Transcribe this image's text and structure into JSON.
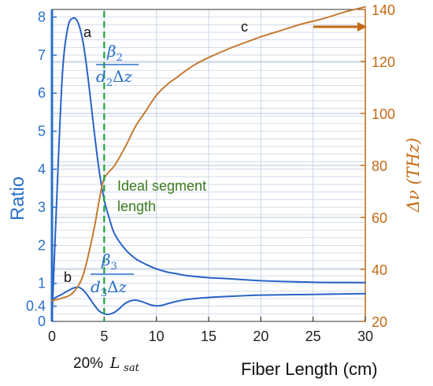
{
  "chart_data": {
    "type": "line",
    "xlabel": "Fiber Length (cm)",
    "ylabel_left": "Ratio",
    "ylabel_right": "Δν (THz)",
    "x_range": [
      0,
      30
    ],
    "y_left_range": [
      0,
      8.2
    ],
    "y_right_range": [
      20,
      140
    ],
    "x_ticks": [
      0,
      5,
      10,
      15,
      20,
      25,
      30
    ],
    "y_left_ticks": [
      0,
      0.4,
      1,
      2,
      3,
      4,
      5,
      6,
      7,
      8
    ],
    "y_right_ticks": [
      20,
      40,
      60,
      80,
      100,
      120,
      140
    ],
    "grid": true,
    "colors": {
      "left_axis": "#2a70c8",
      "right_axis": "#c46a14",
      "series_a": "#2a62c6",
      "series_b": "#2a62c6",
      "series_c": "#c47a30",
      "marker_line": "#1fa33a",
      "marker_text": "#3a7a1e",
      "grid": "#c8d4e6"
    },
    "series": [
      {
        "axis": "left",
        "label": "a",
        "formula": "β2 / d2Δz",
        "points": [
          [
            0,
            0.05
          ],
          [
            0.5,
            3.5
          ],
          [
            1,
            6.5
          ],
          [
            1.5,
            7.7
          ],
          [
            2,
            7.97
          ],
          [
            2.5,
            7.85
          ],
          [
            3,
            7.3
          ],
          [
            3.5,
            6.3
          ],
          [
            4,
            5.1
          ],
          [
            4.5,
            4.0
          ],
          [
            5,
            3.2
          ],
          [
            5.5,
            2.7
          ],
          [
            6,
            2.3
          ],
          [
            7,
            1.9
          ],
          [
            8,
            1.65
          ],
          [
            9,
            1.5
          ],
          [
            10,
            1.38
          ],
          [
            11,
            1.3
          ],
          [
            12,
            1.25
          ],
          [
            13,
            1.2
          ],
          [
            15,
            1.15
          ],
          [
            17,
            1.12
          ],
          [
            20,
            1.07
          ],
          [
            25,
            1.03
          ],
          [
            30,
            1.02
          ]
        ]
      },
      {
        "axis": "left",
        "label": "b",
        "formula": "β3 / d3Δz",
        "points": [
          [
            0,
            0.55
          ],
          [
            0.3,
            0.62
          ],
          [
            1,
            0.72
          ],
          [
            1.5,
            0.8
          ],
          [
            2,
            0.87
          ],
          [
            2.5,
            0.9
          ],
          [
            3,
            0.82
          ],
          [
            3.5,
            0.65
          ],
          [
            4,
            0.45
          ],
          [
            4.5,
            0.28
          ],
          [
            5,
            0.2
          ],
          [
            5.5,
            0.19
          ],
          [
            6,
            0.24
          ],
          [
            6.5,
            0.35
          ],
          [
            7,
            0.47
          ],
          [
            7.5,
            0.54
          ],
          [
            8,
            0.56
          ],
          [
            8.5,
            0.53
          ],
          [
            9,
            0.48
          ],
          [
            9.5,
            0.43
          ],
          [
            10,
            0.41
          ],
          [
            10.5,
            0.42
          ],
          [
            11,
            0.46
          ],
          [
            12,
            0.53
          ],
          [
            13,
            0.58
          ],
          [
            15,
            0.63
          ],
          [
            18,
            0.67
          ],
          [
            20,
            0.69
          ],
          [
            25,
            0.71
          ],
          [
            30,
            0.73
          ]
        ]
      },
      {
        "axis": "right",
        "label": "c",
        "points": [
          [
            0,
            28
          ],
          [
            1,
            29
          ],
          [
            2,
            31
          ],
          [
            3,
            38
          ],
          [
            4,
            55
          ],
          [
            4.5,
            66
          ],
          [
            5,
            75
          ],
          [
            6,
            80
          ],
          [
            7,
            87
          ],
          [
            8,
            95
          ],
          [
            9,
            101
          ],
          [
            10,
            107
          ],
          [
            11,
            111
          ],
          [
            12,
            114
          ],
          [
            13,
            117
          ],
          [
            14,
            119.5
          ],
          [
            15,
            121.5
          ],
          [
            17,
            125
          ],
          [
            19,
            128
          ],
          [
            20,
            129.5
          ],
          [
            22,
            132
          ],
          [
            24,
            134.5
          ],
          [
            26,
            136.5
          ],
          [
            28,
            139
          ],
          [
            30,
            141
          ]
        ]
      }
    ],
    "vertical_marker": {
      "x": 5,
      "text_line1": "Ideal segment",
      "text_line2": "length"
    },
    "label_a": "a",
    "label_b": "b",
    "label_c": "c",
    "bottom_note": "20%",
    "bottom_note_math": "L",
    "bottom_note_sub": "sat"
  }
}
